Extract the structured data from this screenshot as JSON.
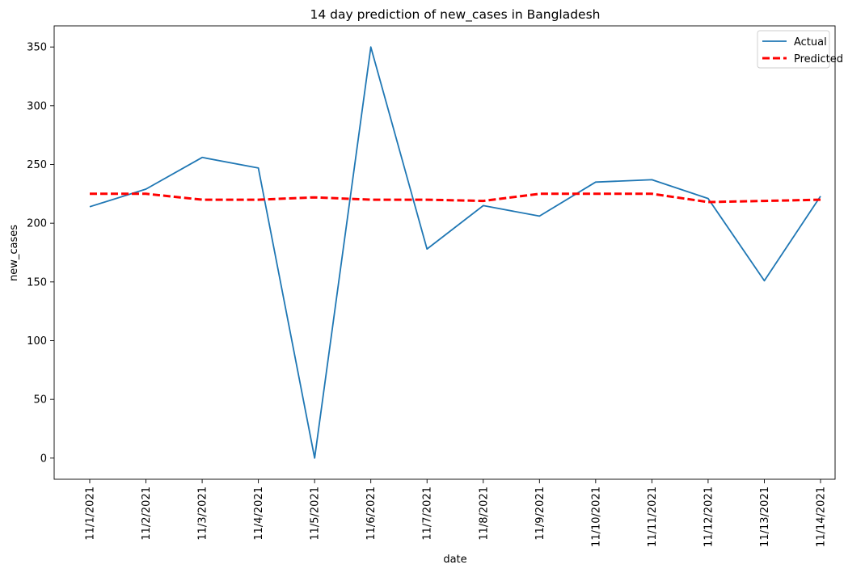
{
  "chart_data": {
    "type": "line",
    "title": "14 day prediction of new_cases in Bangladesh",
    "xlabel": "date",
    "ylabel": "new_cases",
    "x": [
      "11/1/2021",
      "11/2/2021",
      "11/3/2021",
      "11/4/2021",
      "11/5/2021",
      "11/6/2021",
      "11/7/2021",
      "11/8/2021",
      "11/9/2021",
      "11/10/2021",
      "11/11/2021",
      "11/12/2021",
      "11/13/2021",
      "11/14/2021"
    ],
    "yticks": [
      0,
      50,
      100,
      150,
      200,
      250,
      300,
      350
    ],
    "ylim": [
      -18,
      368
    ],
    "grid": false,
    "legend_position": "top-right",
    "series": [
      {
        "name": "Actual",
        "color": "#1f77b4",
        "style": "solid",
        "values": [
          214,
          229,
          256,
          247,
          0,
          350,
          178,
          215,
          206,
          235,
          237,
          221,
          151,
          223
        ]
      },
      {
        "name": "Predicted",
        "color": "#ff0000",
        "style": "dashed",
        "values": [
          225,
          225,
          220,
          220,
          222,
          220,
          220,
          219,
          225,
          225,
          225,
          218,
          219,
          220
        ]
      }
    ]
  }
}
